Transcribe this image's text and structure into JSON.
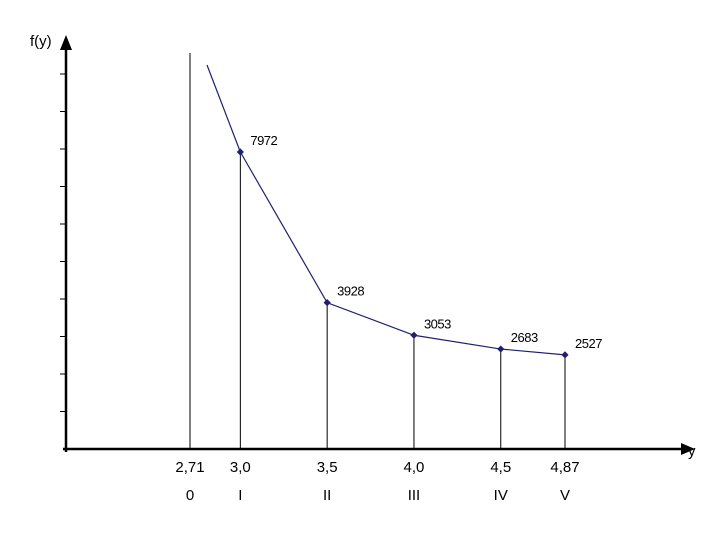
{
  "chart_data": {
    "type": "line",
    "xlabel": "y",
    "ylabel": "f(y)",
    "x": [
      3.0,
      3.5,
      4.0,
      4.5,
      4.87
    ],
    "values": [
      7972,
      3928,
      3053,
      2683,
      2527
    ],
    "value_labels": [
      "7972",
      "3928",
      "3053",
      "2683",
      "2527"
    ],
    "x_tick_labels": [
      "2,71",
      "3,0",
      "3,5",
      "4,0",
      "4,5",
      "4,87"
    ],
    "x_tick_values": [
      2.71,
      3.0,
      3.5,
      4.0,
      4.5,
      4.87
    ],
    "roman_labels": [
      "0",
      "I",
      "II",
      "III",
      "IV",
      "V"
    ],
    "grid": false,
    "series_color": "#1f1f6e",
    "axis_color": "#000000"
  }
}
